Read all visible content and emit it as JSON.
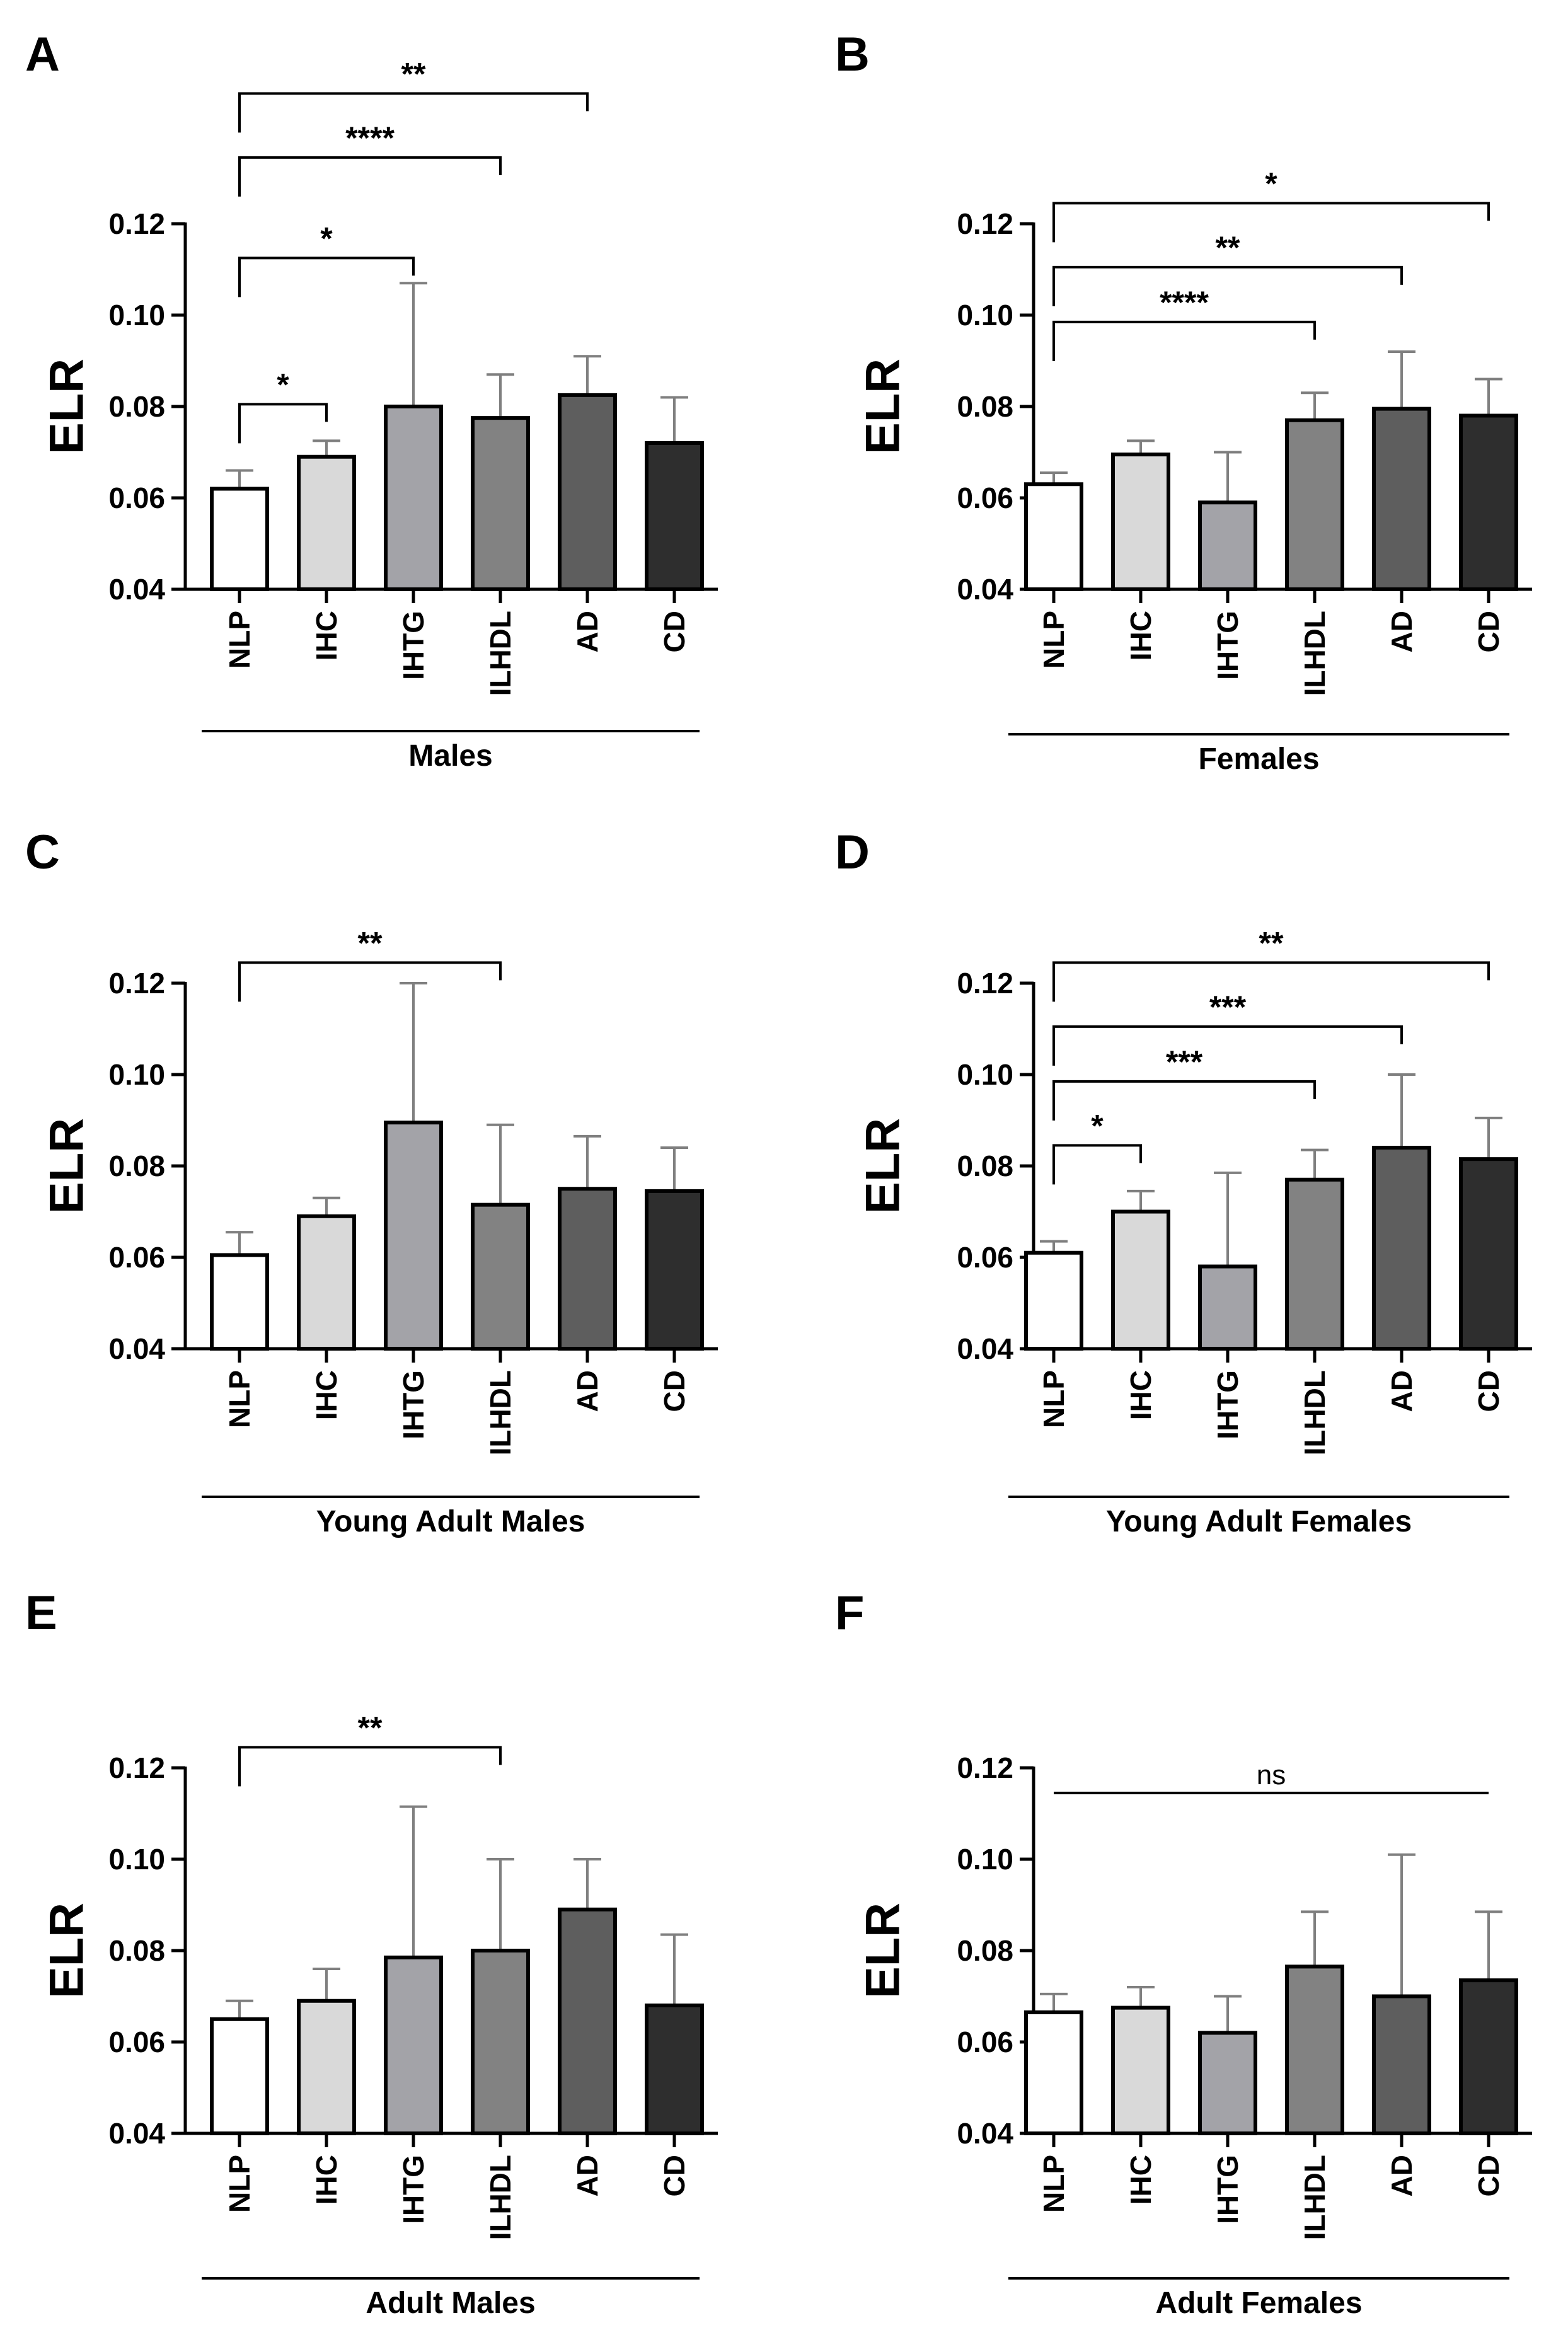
{
  "colors": {
    "NLP": "#ffffff",
    "IHC": "#d9d9d9",
    "IHTG": "#a3a3a8",
    "ILHDL": "#828282",
    "AD": "#5e5e5e",
    "CD": "#2e2e2e",
    "stroke": "#000000",
    "error": "#7f7f7f"
  },
  "chart_data": [
    {
      "panel": "A",
      "type": "bar",
      "ylabel": "ELR",
      "group_label": "Males",
      "ylim": [
        0.04,
        0.12
      ],
      "yticks": [
        "0.04",
        "0.06",
        "0.08",
        "0.10",
        "0.12"
      ],
      "categories": [
        "NLP",
        "IHC",
        "IHTG",
        "ILHDL",
        "AD",
        "CD"
      ],
      "values": [
        0.062,
        0.069,
        0.08,
        0.0775,
        0.0825,
        0.072
      ],
      "errors": [
        0.004,
        0.0035,
        0.027,
        0.0095,
        0.0085,
        0.01
      ],
      "significance": [
        {
          "from": 0,
          "to": 1,
          "label": "*",
          "level": 0.0805
        },
        {
          "from": 0,
          "to": 2,
          "label": "*",
          "level": 0.1125
        },
        {
          "from": 0,
          "to": 3,
          "label": "****",
          "level": 0.1345
        },
        {
          "from": 0,
          "to": 4,
          "label": "**",
          "level": 0.1485
        }
      ]
    },
    {
      "panel": "B",
      "type": "bar",
      "ylabel": "ELR",
      "group_label": "Females",
      "ylim": [
        0.04,
        0.12
      ],
      "yticks": [
        "0.04",
        "0.06",
        "0.08",
        "0.10",
        "0.12"
      ],
      "categories": [
        "NLP",
        "IHC",
        "IHTG",
        "ILHDL",
        "AD",
        "CD"
      ],
      "values": [
        0.063,
        0.0695,
        0.059,
        0.077,
        0.0795,
        0.078
      ],
      "errors": [
        0.0025,
        0.003,
        0.011,
        0.006,
        0.0125,
        0.008
      ],
      "significance": [
        {
          "from": 0,
          "to": 3,
          "label": "****",
          "level": 0.0985
        },
        {
          "from": 0,
          "to": 4,
          "label": "**",
          "level": 0.1105
        },
        {
          "from": 0,
          "to": 5,
          "label": "*",
          "level": 0.1245
        }
      ]
    },
    {
      "panel": "C",
      "type": "bar",
      "ylabel": "ELR",
      "group_label": "Young Adult Males",
      "ylim": [
        0.04,
        0.12
      ],
      "yticks": [
        "0.04",
        "0.06",
        "0.08",
        "0.10",
        "0.12"
      ],
      "categories": [
        "NLP",
        "IHC",
        "IHTG",
        "ILHDL",
        "AD",
        "CD"
      ],
      "values": [
        0.0605,
        0.069,
        0.0895,
        0.0715,
        0.075,
        0.0745
      ],
      "errors": [
        0.005,
        0.004,
        0.0305,
        0.0175,
        0.0115,
        0.0095
      ],
      "significance": [
        {
          "from": 0,
          "to": 3,
          "label": "**",
          "level": 0.1245
        }
      ]
    },
    {
      "panel": "D",
      "type": "bar",
      "ylabel": "ELR",
      "group_label": "Young Adult Females",
      "ylim": [
        0.04,
        0.12
      ],
      "yticks": [
        "0.04",
        "0.06",
        "0.08",
        "0.10",
        "0.12"
      ],
      "categories": [
        "NLP",
        "IHC",
        "IHTG",
        "ILHDL",
        "AD",
        "CD"
      ],
      "values": [
        0.061,
        0.07,
        0.058,
        0.077,
        0.084,
        0.0815
      ],
      "errors": [
        0.0025,
        0.0045,
        0.0205,
        0.0065,
        0.016,
        0.009
      ],
      "significance": [
        {
          "from": 0,
          "to": 1,
          "label": "*",
          "level": 0.0845
        },
        {
          "from": 0,
          "to": 3,
          "label": "***",
          "level": 0.0985
        },
        {
          "from": 0,
          "to": 4,
          "label": "***",
          "level": 0.1105
        },
        {
          "from": 0,
          "to": 5,
          "label": "**",
          "level": 0.1245
        }
      ]
    },
    {
      "panel": "E",
      "type": "bar",
      "ylabel": "ELR",
      "group_label": "Adult Males",
      "ylim": [
        0.04,
        0.12
      ],
      "yticks": [
        "0.04",
        "0.06",
        "0.08",
        "0.10",
        "0.12"
      ],
      "categories": [
        "NLP",
        "IHC",
        "IHTG",
        "ILHDL",
        "AD",
        "CD"
      ],
      "values": [
        0.065,
        0.069,
        0.0785,
        0.08,
        0.089,
        0.068
      ],
      "errors": [
        0.004,
        0.007,
        0.033,
        0.02,
        0.011,
        0.0155
      ],
      "significance": [
        {
          "from": 0,
          "to": 3,
          "label": "**",
          "level": 0.1245
        }
      ]
    },
    {
      "panel": "F",
      "type": "bar",
      "ylabel": "ELR",
      "group_label": "Adult Females",
      "ylim": [
        0.04,
        0.12
      ],
      "yticks": [
        "0.04",
        "0.06",
        "0.08",
        "0.10",
        "0.12"
      ],
      "categories": [
        "NLP",
        "IHC",
        "IHTG",
        "ILHDL",
        "AD",
        "CD"
      ],
      "values": [
        0.0665,
        0.0675,
        0.062,
        0.0765,
        0.07,
        0.0735
      ],
      "errors": [
        0.004,
        0.0045,
        0.008,
        0.012,
        0.031,
        0.015
      ],
      "significance": [
        {
          "from": 0,
          "to": 5,
          "label": "ns",
          "level": 0.1145,
          "bar_only": true
        }
      ]
    }
  ]
}
